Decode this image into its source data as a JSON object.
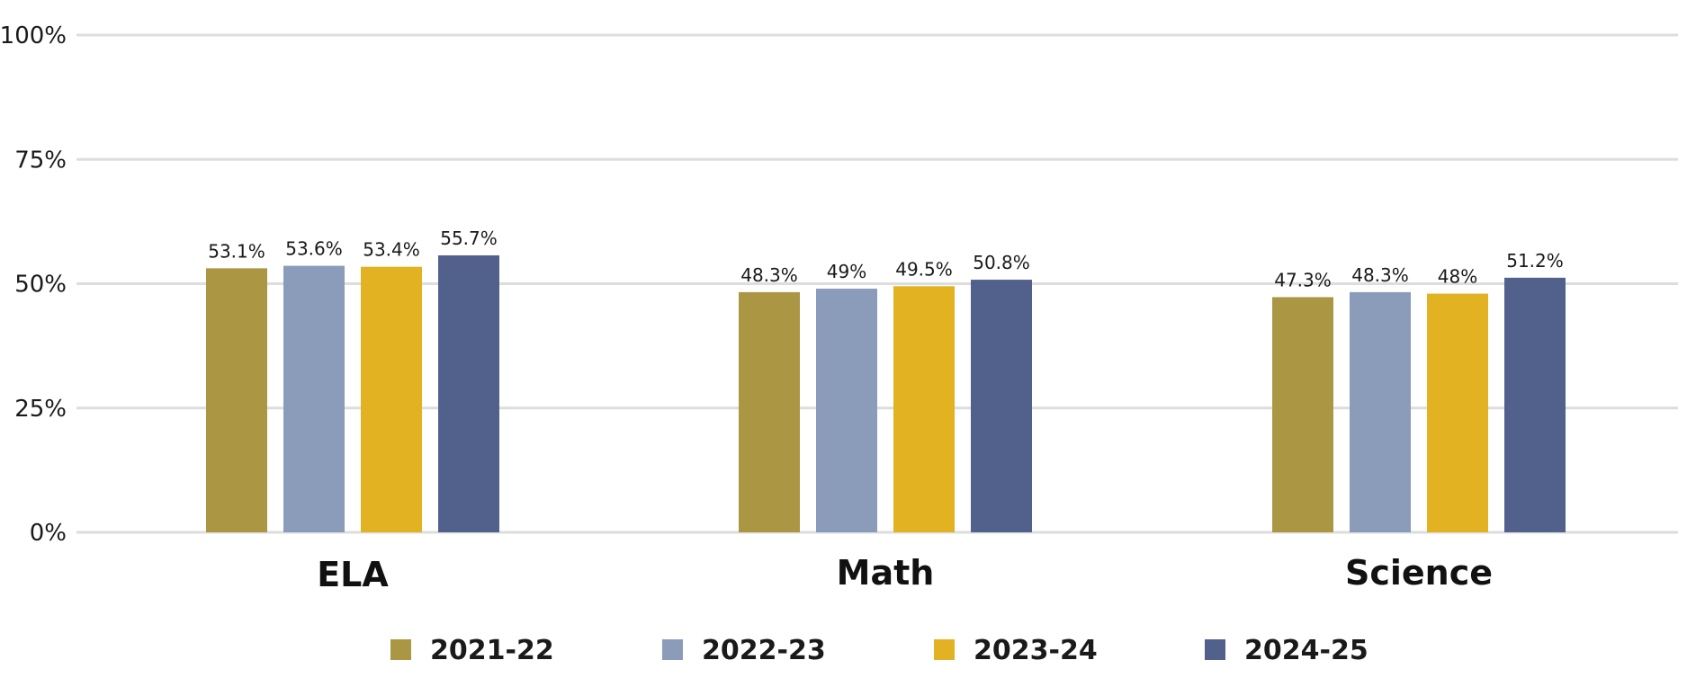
{
  "chart_data": {
    "type": "bar",
    "title": "",
    "xlabel": "",
    "ylabel": "",
    "ylim": [
      0,
      100
    ],
    "yticks": [
      0,
      25,
      50,
      75,
      100
    ],
    "ytick_labels": [
      "0%",
      "25%",
      "50%",
      "75%",
      "100%"
    ],
    "grid": true,
    "legend_position": "bottom",
    "categories": [
      "ELA",
      "Math",
      "Science"
    ],
    "series": [
      {
        "name": "2021-22",
        "color": "#ab9644",
        "values": [
          53.1,
          48.3,
          47.3
        ],
        "labels": [
          "53.1%",
          "48.3%",
          "47.3%"
        ]
      },
      {
        "name": "2022-23",
        "color": "#8a9cba",
        "values": [
          53.6,
          49,
          48.3
        ],
        "labels": [
          "53.6%",
          "49%",
          "48.3%"
        ]
      },
      {
        "name": "2023-24",
        "color": "#e3b223",
        "values": [
          53.4,
          49.5,
          48
        ],
        "labels": [
          "53.4%",
          "49.5%",
          "48%"
        ]
      },
      {
        "name": "2024-25",
        "color": "#52618c",
        "values": [
          55.7,
          50.8,
          51.2
        ],
        "labels": [
          "55.7%",
          "50.8%",
          "51.2%"
        ]
      }
    ]
  }
}
